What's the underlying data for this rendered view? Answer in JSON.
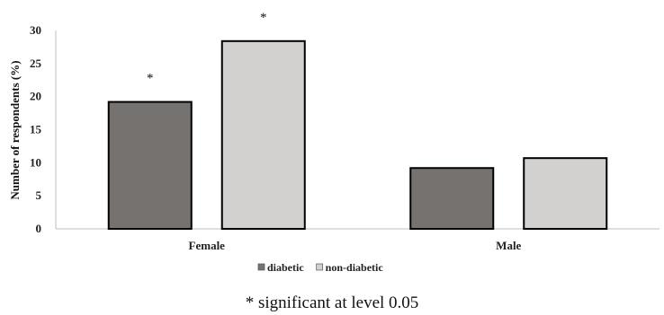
{
  "chart_data": {
    "type": "bar",
    "categories": [
      "Female",
      "Male"
    ],
    "series": [
      {
        "name": "diabetic",
        "values": [
          19.2,
          9.2
        ],
        "color": "#767270"
      },
      {
        "name": "non-diabetic",
        "values": [
          28.4,
          10.7
        ],
        "color": "#d3d0d0"
      }
    ],
    "xlabel": "",
    "ylabel": "Number of respondents (%)",
    "ylim": [
      0,
      30
    ],
    "yticks": [
      "0",
      "5",
      "10",
      "15",
      "20",
      "25",
      "30"
    ],
    "grid": false,
    "legend_position": "bottom",
    "annotations": [
      {
        "category": "Female",
        "series": "diabetic",
        "text": "*"
      },
      {
        "category": "Female",
        "series": "non-diabetic",
        "text": "*"
      }
    ]
  },
  "footnote": "* significant at level 0.05"
}
